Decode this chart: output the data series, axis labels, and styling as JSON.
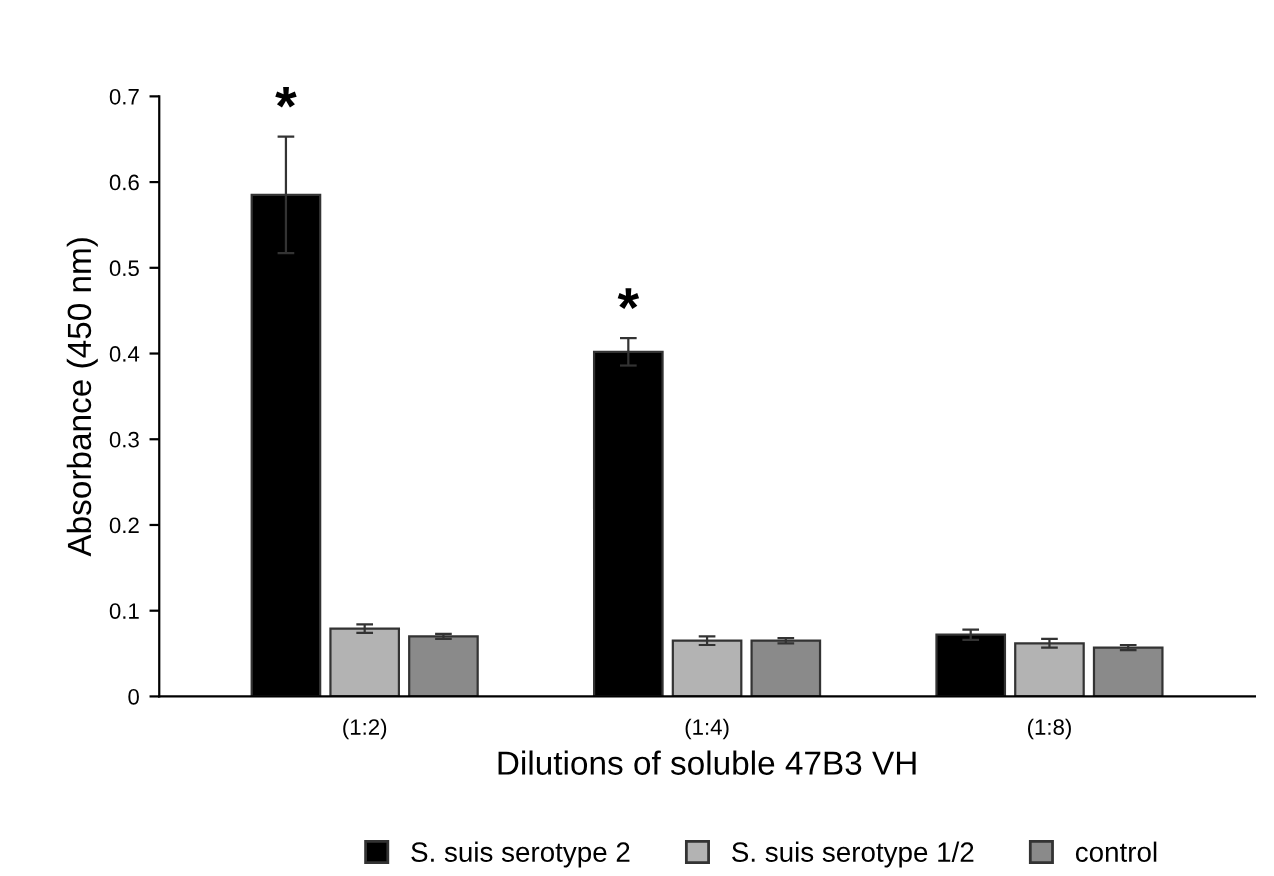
{
  "chart_data": {
    "type": "bar",
    "xlabel": "Dilutions of soluble 47B3 VH",
    "ylabel": "Absorbance (450 nm)",
    "categories": [
      "(1:2)",
      "(1:4)",
      "(1:8)"
    ],
    "series": [
      {
        "name": "S. suis serotype 2",
        "color": "#000000",
        "values": [
          0.585,
          0.402,
          0.072
        ],
        "errors": [
          0.068,
          0.016,
          0.006
        ],
        "value_labels": [
          "*",
          "*",
          null
        ]
      },
      {
        "name": "S. suis serotype 1/2",
        "color": "#b3b3b3",
        "values": [
          0.079,
          0.065,
          0.062
        ],
        "errors": [
          0.005,
          0.005,
          0.005
        ]
      },
      {
        "name": "control",
        "color": "#8a8a8a",
        "values": [
          0.07,
          0.065,
          0.057
        ],
        "errors": [
          0.003,
          0.003,
          0.003
        ]
      }
    ],
    "ylim": [
      0,
      0.7
    ],
    "yticks": [
      0,
      0.1,
      0.2,
      0.3,
      0.4,
      0.5,
      0.6,
      0.7
    ],
    "grid": false,
    "legend": "bottom"
  }
}
